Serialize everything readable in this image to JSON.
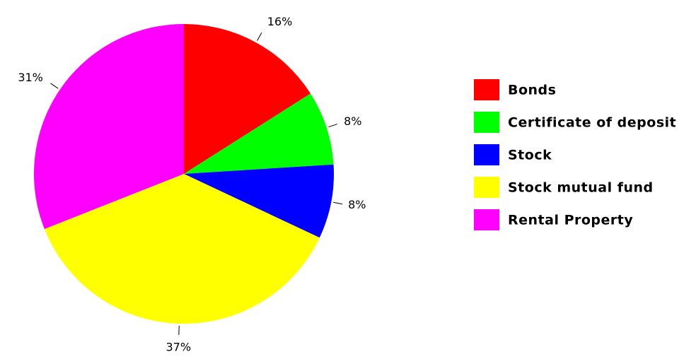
{
  "chart_data": {
    "type": "pie",
    "categories": [
      "Bonds",
      "Certificate of deposit",
      "Stock",
      "Stock mutual fund",
      "Rental Property"
    ],
    "values": [
      16,
      8,
      8,
      37,
      31
    ],
    "value_labels": [
      "16%",
      "8%",
      "8%",
      "37%",
      "31%"
    ],
    "colors": [
      "#ff0000",
      "#00ff00",
      "#0000ff",
      "#ffff00",
      "#ff00ff"
    ],
    "legend": "right"
  }
}
